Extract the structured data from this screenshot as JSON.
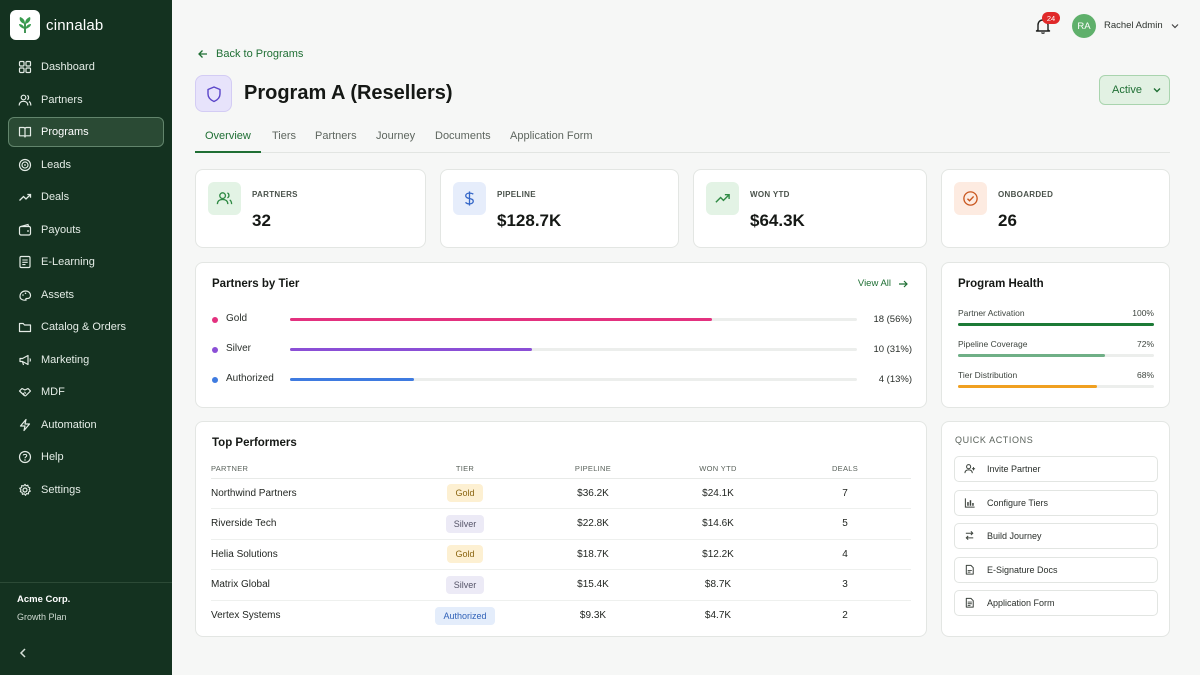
{
  "app": {
    "name": "cinnalab"
  },
  "sidebar": {
    "items": [
      {
        "label": "Dashboard",
        "icon": "grid-icon"
      },
      {
        "label": "Partners",
        "icon": "users-icon"
      },
      {
        "label": "Programs",
        "icon": "book-icon",
        "active": true
      },
      {
        "label": "Leads",
        "icon": "target-icon"
      },
      {
        "label": "Deals",
        "icon": "trend-icon"
      },
      {
        "label": "Payouts",
        "icon": "wallet-icon"
      },
      {
        "label": "E-Learning",
        "icon": "elearning-icon"
      },
      {
        "label": "Assets",
        "icon": "assets-icon"
      },
      {
        "label": "Catalog & Orders",
        "icon": "folder-icon"
      },
      {
        "label": "Marketing",
        "icon": "megaphone-icon"
      },
      {
        "label": "MDF",
        "icon": "handshake-icon"
      },
      {
        "label": "Automation",
        "icon": "zap-icon"
      },
      {
        "label": "Help",
        "icon": "help-icon"
      },
      {
        "label": "Settings",
        "icon": "gear-icon"
      }
    ],
    "org": {
      "name": "Acme Corp.",
      "plan": "Growth Plan"
    }
  },
  "header": {
    "notifications_count": "24",
    "user_initials": "RA",
    "user_name": "Rachel Admin"
  },
  "page": {
    "back_label": "Back to Programs",
    "title": "Program A (Resellers)",
    "status": "Active",
    "tabs": [
      "Overview",
      "Tiers",
      "Partners",
      "Journey",
      "Documents",
      "Application Form"
    ]
  },
  "stats": [
    {
      "label": "PARTNERS",
      "value": "32",
      "icon": "users-icon",
      "bg": "#e3f3e5",
      "fg": "#2f8a44"
    },
    {
      "label": "PIPELINE",
      "value": "$128.7K",
      "icon": "dollar-icon",
      "bg": "#e6edfb",
      "fg": "#3567c8"
    },
    {
      "label": "WON YTD",
      "value": "$64.3K",
      "icon": "trend-icon",
      "bg": "#e3f3e5",
      "fg": "#2f8a44"
    },
    {
      "label": "ONBOARDED",
      "value": "26",
      "icon": "check-circle-icon",
      "bg": "#fdebe1",
      "fg": "#c9561e"
    }
  ],
  "tiers_card": {
    "title": "Partners by Tier",
    "view_all": "View All",
    "tiers": [
      {
        "name": "Gold",
        "count": "18 (56%)",
        "fraction": 0.745,
        "color": "#e3317f"
      },
      {
        "name": "Silver",
        "count": "10 (31%)",
        "fraction": 0.427,
        "color": "#8b4fd6"
      },
      {
        "name": "Authorized",
        "count": "4 (13%)",
        "fraction": 0.219,
        "color": "#3f7be0"
      }
    ]
  },
  "health_card": {
    "title": "Program Health",
    "rows": [
      {
        "name": "Partner Activation",
        "pct": "100%",
        "fraction": 1.0,
        "color": "#1c7a36"
      },
      {
        "name": "Pipeline Coverage",
        "pct": "72%",
        "fraction": 0.75,
        "color": "#6faf86"
      },
      {
        "name": "Tier Distribution",
        "pct": "68%",
        "fraction": 0.71,
        "color": "#f0a020"
      }
    ]
  },
  "performers": {
    "title": "Top Performers",
    "columns": [
      "PARTNER",
      "TIER",
      "PIPELINE",
      "WON YTD",
      "DEALS"
    ],
    "rows": [
      {
        "partner": "Northwind Partners",
        "tier": "Gold",
        "pipeline": "$36.2K",
        "won": "$24.1K",
        "deals": "7"
      },
      {
        "partner": "Riverside Tech",
        "tier": "Silver",
        "pipeline": "$22.8K",
        "won": "$14.6K",
        "deals": "5"
      },
      {
        "partner": "Helia Solutions",
        "tier": "Gold",
        "pipeline": "$18.7K",
        "won": "$12.2K",
        "deals": "4"
      },
      {
        "partner": "Matrix Global",
        "tier": "Silver",
        "pipeline": "$15.4K",
        "won": "$8.7K",
        "deals": "3"
      },
      {
        "partner": "Vertex Systems",
        "tier": "Authorized",
        "pipeline": "$9.3K",
        "won": "$4.7K",
        "deals": "2"
      }
    ]
  },
  "quick_actions": {
    "title": "QUICK ACTIONS",
    "items": [
      {
        "label": "Invite Partner",
        "icon": "user-plus-icon"
      },
      {
        "label": "Configure Tiers",
        "icon": "bar-chart-icon"
      },
      {
        "label": "Build Journey",
        "icon": "route-icon"
      },
      {
        "label": "E-Signature Docs",
        "icon": "doc-sign-icon"
      },
      {
        "label": "Application Form",
        "icon": "doc-icon"
      }
    ]
  }
}
